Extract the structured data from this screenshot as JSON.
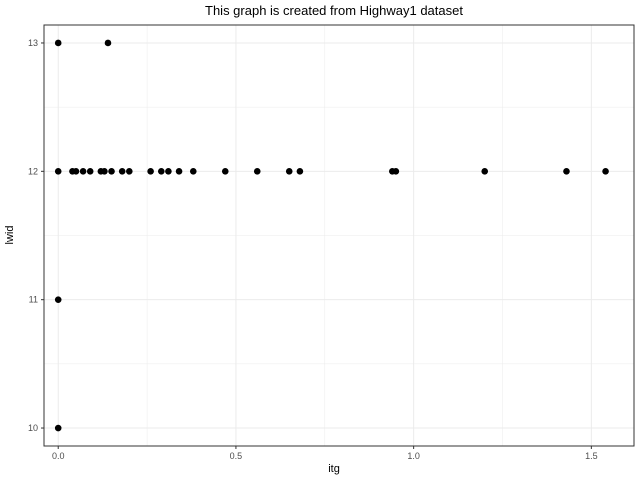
{
  "chart_data": {
    "type": "scatter",
    "title": "This graph is created from Highway1 dataset",
    "xlabel": "itg",
    "ylabel": "lwid",
    "xlim": [
      -0.04,
      1.62
    ],
    "ylim": [
      9.86,
      13.14
    ],
    "x_ticks": [
      {
        "value": 0.0,
        "label": "0.0"
      },
      {
        "value": 0.5,
        "label": "0.5"
      },
      {
        "value": 1.0,
        "label": "1.0"
      },
      {
        "value": 1.5,
        "label": "1.5"
      }
    ],
    "y_ticks": [
      {
        "value": 10,
        "label": "10"
      },
      {
        "value": 11,
        "label": "11"
      },
      {
        "value": 12,
        "label": "12"
      },
      {
        "value": 13,
        "label": "13"
      }
    ],
    "grid": true,
    "theme": "bw",
    "point_color": "#000000",
    "panel_border_color": "#333333",
    "grid_color": "#ebebeb",
    "points": [
      {
        "x": 0.0,
        "y": 13
      },
      {
        "x": 0.14,
        "y": 13
      },
      {
        "x": 0.0,
        "y": 12
      },
      {
        "x": 0.04,
        "y": 12
      },
      {
        "x": 0.05,
        "y": 12
      },
      {
        "x": 0.07,
        "y": 12
      },
      {
        "x": 0.09,
        "y": 12
      },
      {
        "x": 0.12,
        "y": 12
      },
      {
        "x": 0.13,
        "y": 12
      },
      {
        "x": 0.15,
        "y": 12
      },
      {
        "x": 0.18,
        "y": 12
      },
      {
        "x": 0.2,
        "y": 12
      },
      {
        "x": 0.26,
        "y": 12
      },
      {
        "x": 0.29,
        "y": 12
      },
      {
        "x": 0.31,
        "y": 12
      },
      {
        "x": 0.34,
        "y": 12
      },
      {
        "x": 0.38,
        "y": 12
      },
      {
        "x": 0.47,
        "y": 12
      },
      {
        "x": 0.56,
        "y": 12
      },
      {
        "x": 0.65,
        "y": 12
      },
      {
        "x": 0.68,
        "y": 12
      },
      {
        "x": 0.94,
        "y": 12
      },
      {
        "x": 0.95,
        "y": 12
      },
      {
        "x": 1.2,
        "y": 12
      },
      {
        "x": 1.43,
        "y": 12
      },
      {
        "x": 1.54,
        "y": 12
      },
      {
        "x": 0.0,
        "y": 11
      },
      {
        "x": 0.0,
        "y": 10
      }
    ]
  }
}
